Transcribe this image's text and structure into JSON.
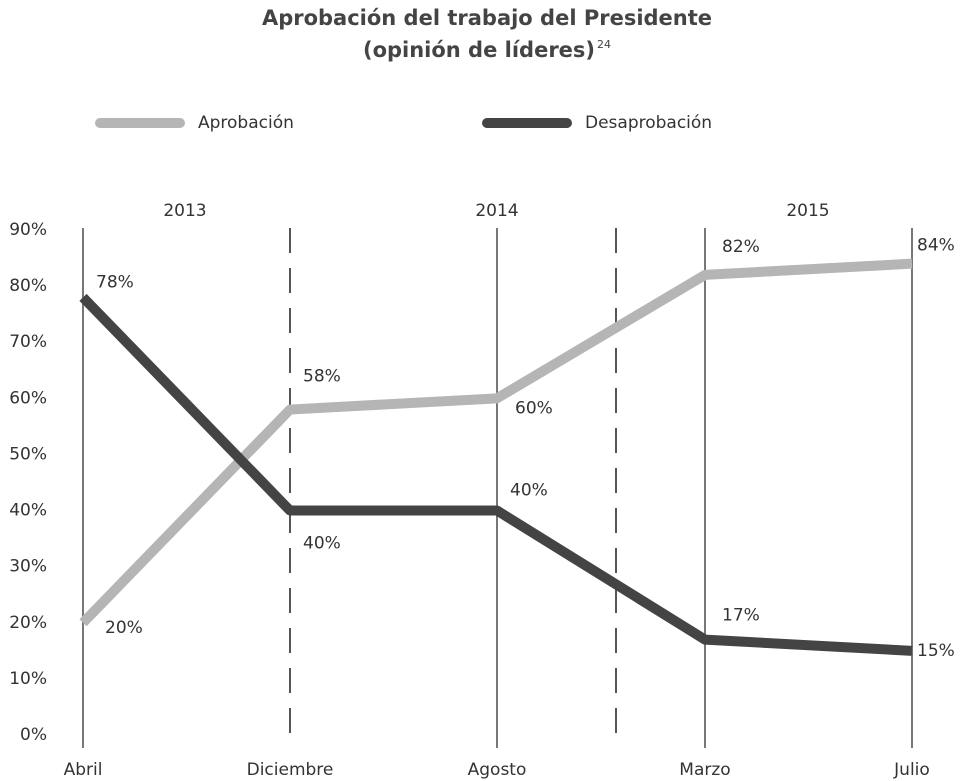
{
  "chart_data": {
    "type": "line",
    "title": "Aprobación del trabajo del Presidente",
    "subtitle": "(opinión de líderes)",
    "title_note": "24",
    "categories": [
      "Abril",
      "Diciembre",
      "Agosto",
      "Marzo",
      "Julio"
    ],
    "periods": [
      "2013",
      "2014",
      "2015"
    ],
    "series": [
      {
        "name": "Aprobación",
        "color": "#b5b5b5",
        "values": [
          20,
          58,
          60,
          82,
          84
        ],
        "value_labels": [
          "20%",
          "58%",
          "60%",
          "82%",
          "84%"
        ]
      },
      {
        "name": "Desaprobación",
        "color": "#444444",
        "values": [
          78,
          40,
          40,
          17,
          15
        ],
        "value_labels": [
          "78%",
          "40%",
          "40%",
          "17%",
          "15%"
        ]
      }
    ],
    "ylim": [
      0,
      90
    ],
    "yticks": [
      {
        "value": 0,
        "label": "0%"
      },
      {
        "value": 10,
        "label": "10%"
      },
      {
        "value": 20,
        "label": "20%"
      },
      {
        "value": 30,
        "label": "30%"
      },
      {
        "value": 40,
        "label": "40%"
      },
      {
        "value": 50,
        "label": "50%"
      },
      {
        "value": 60,
        "label": "60%"
      },
      {
        "value": 70,
        "label": "70%"
      },
      {
        "value": 80,
        "label": "80%"
      },
      {
        "value": 90,
        "label": "90%"
      }
    ],
    "grid": false
  }
}
